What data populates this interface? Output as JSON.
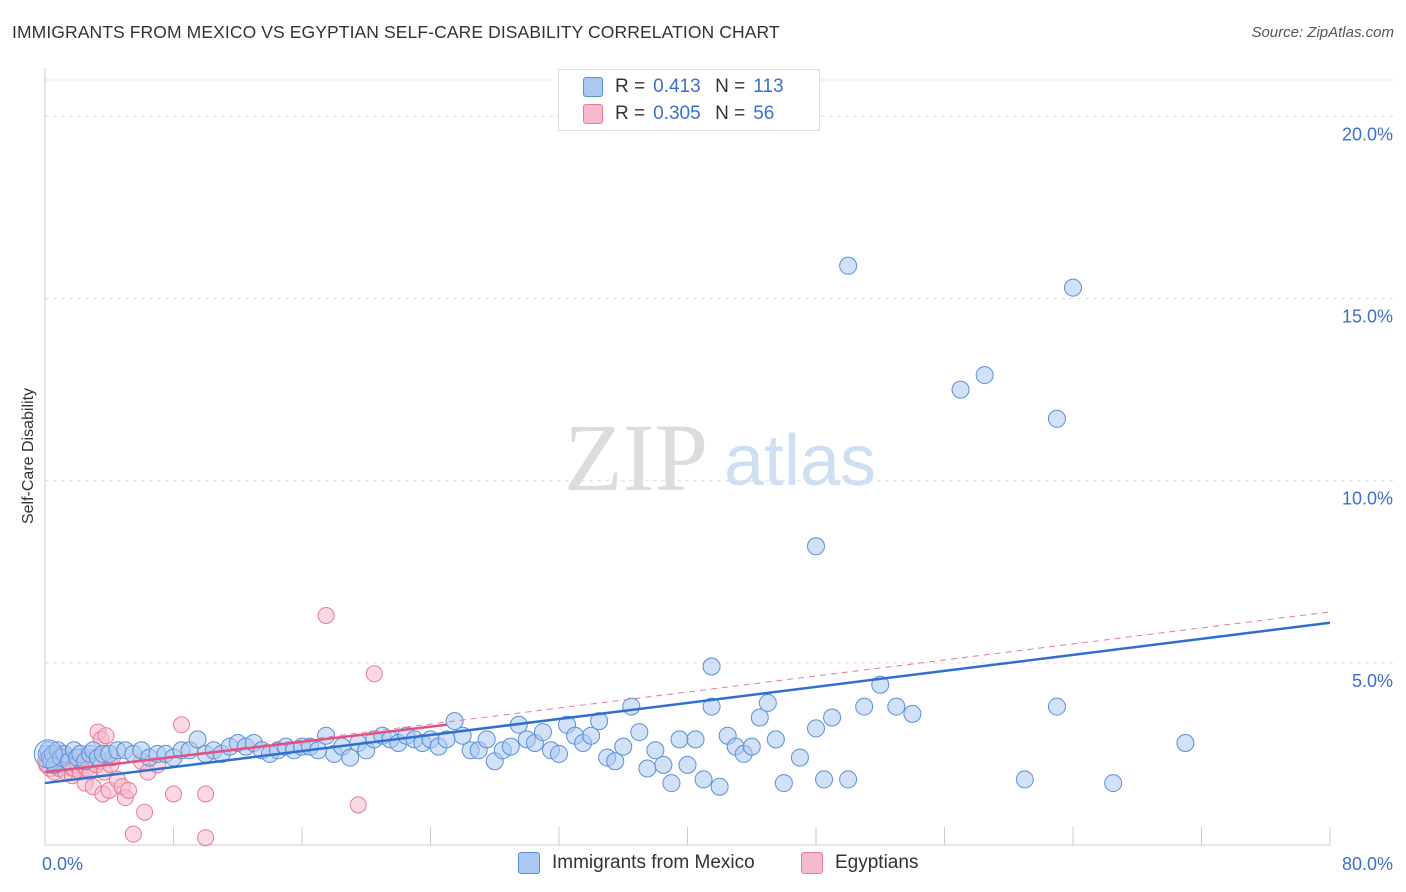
{
  "header": {
    "title": "IMMIGRANTS FROM MEXICO VS EGYPTIAN SELF-CARE DISABILITY CORRELATION CHART",
    "source": "Source: ZipAtlas.com"
  },
  "legend": {
    "r_label": "R =",
    "n_label": "N =",
    "series": [
      {
        "name": "Immigrants from Mexico",
        "r": "0.413",
        "n": "113"
      },
      {
        "name": "Egyptians",
        "r": "0.305",
        "n": "56"
      }
    ]
  },
  "watermark": {
    "zip": "ZIP",
    "atlas": "atlas"
  },
  "colors": {
    "blue_fill": "#a9c8f2",
    "blue_stroke": "#5b8fd9",
    "blue_line": "#2f6fd0",
    "pink_fill": "#f7b9cc",
    "pink_stroke": "#e57a9c",
    "pink_line": "#e0527f",
    "axis_text": "#3b6fd4",
    "grid": "#dddddd"
  },
  "chart_data": {
    "type": "scatter",
    "title": "IMMIGRANTS FROM MEXICO VS EGYPTIAN SELF-CARE DISABILITY CORRELATION CHART",
    "xlabel": "",
    "ylabel": "Self-Care Disability",
    "xlim": [
      0,
      80
    ],
    "ylim": [
      0,
      21
    ],
    "x_tick_labels": [
      {
        "value": 0,
        "label": "0.0%"
      },
      {
        "value": 80,
        "label": "80.0%"
      }
    ],
    "y_tick_labels": [
      {
        "value": 5,
        "label": "5.0%"
      },
      {
        "value": 10,
        "label": "10.0%"
      },
      {
        "value": 15,
        "label": "15.0%"
      },
      {
        "value": 20,
        "label": "20.0%"
      }
    ],
    "series": [
      {
        "name": "Immigrants from Mexico",
        "color": "blue",
        "trend": {
          "x": [
            0,
            80
          ],
          "y": [
            1.7,
            6.1
          ],
          "style": "solid"
        },
        "points": [
          [
            0.1,
            2.5
          ],
          [
            0.2,
            2.6
          ],
          [
            0.3,
            2.4
          ],
          [
            0.4,
            2.3
          ],
          [
            0.5,
            2.5
          ],
          [
            0.6,
            2.2
          ],
          [
            0.8,
            2.6
          ],
          [
            1.0,
            2.4
          ],
          [
            1.2,
            2.5
          ],
          [
            1.5,
            2.3
          ],
          [
            1.8,
            2.6
          ],
          [
            2.0,
            2.4
          ],
          [
            2.2,
            2.5
          ],
          [
            2.5,
            2.3
          ],
          [
            2.8,
            2.5
          ],
          [
            3.0,
            2.6
          ],
          [
            3.3,
            2.4
          ],
          [
            3.6,
            2.5
          ],
          [
            4.0,
            2.5
          ],
          [
            4.5,
            2.6
          ],
          [
            5.0,
            2.6
          ],
          [
            5.5,
            2.5
          ],
          [
            6.0,
            2.6
          ],
          [
            6.5,
            2.4
          ],
          [
            7.0,
            2.5
          ],
          [
            7.5,
            2.5
          ],
          [
            8.0,
            2.4
          ],
          [
            8.5,
            2.6
          ],
          [
            9.0,
            2.6
          ],
          [
            9.5,
            2.9
          ],
          [
            10.0,
            2.5
          ],
          [
            10.5,
            2.6
          ],
          [
            11.0,
            2.5
          ],
          [
            11.5,
            2.7
          ],
          [
            12.0,
            2.8
          ],
          [
            12.5,
            2.7
          ],
          [
            13.0,
            2.8
          ],
          [
            13.5,
            2.6
          ],
          [
            14.0,
            2.5
          ],
          [
            14.5,
            2.6
          ],
          [
            15.0,
            2.7
          ],
          [
            15.5,
            2.6
          ],
          [
            16.0,
            2.7
          ],
          [
            16.5,
            2.7
          ],
          [
            17.0,
            2.6
          ],
          [
            17.5,
            3.0
          ],
          [
            18.0,
            2.5
          ],
          [
            18.5,
            2.7
          ],
          [
            19.0,
            2.4
          ],
          [
            19.5,
            2.8
          ],
          [
            20.0,
            2.6
          ],
          [
            20.5,
            2.9
          ],
          [
            21.0,
            3.0
          ],
          [
            21.5,
            2.9
          ],
          [
            22.0,
            2.8
          ],
          [
            22.5,
            3.0
          ],
          [
            23.0,
            2.9
          ],
          [
            23.5,
            2.8
          ],
          [
            24.0,
            2.9
          ],
          [
            24.5,
            2.7
          ],
          [
            25.0,
            2.9
          ],
          [
            25.5,
            3.4
          ],
          [
            26.0,
            3.0
          ],
          [
            26.5,
            2.6
          ],
          [
            27.0,
            2.6
          ],
          [
            27.5,
            2.9
          ],
          [
            28.0,
            2.3
          ],
          [
            28.5,
            2.6
          ],
          [
            29.0,
            2.7
          ],
          [
            29.5,
            3.3
          ],
          [
            30.0,
            2.9
          ],
          [
            30.5,
            2.8
          ],
          [
            31.0,
            3.1
          ],
          [
            31.5,
            2.6
          ],
          [
            32.0,
            2.5
          ],
          [
            32.5,
            3.3
          ],
          [
            33.0,
            3.0
          ],
          [
            33.5,
            2.8
          ],
          [
            34.0,
            3.0
          ],
          [
            34.5,
            3.4
          ],
          [
            35.0,
            2.4
          ],
          [
            35.5,
            2.3
          ],
          [
            36.0,
            2.7
          ],
          [
            36.5,
            3.8
          ],
          [
            37.0,
            3.1
          ],
          [
            37.5,
            2.1
          ],
          [
            38.0,
            2.6
          ],
          [
            38.5,
            2.2
          ],
          [
            39.0,
            1.7
          ],
          [
            39.5,
            2.9
          ],
          [
            40.0,
            2.2
          ],
          [
            40.5,
            2.9
          ],
          [
            41.0,
            1.8
          ],
          [
            41.5,
            3.8
          ],
          [
            42.0,
            1.6
          ],
          [
            42.5,
            3.0
          ],
          [
            43.0,
            2.7
          ],
          [
            43.5,
            2.5
          ],
          [
            44.0,
            2.7
          ],
          [
            44.5,
            3.5
          ],
          [
            45.0,
            3.9
          ],
          [
            45.5,
            2.9
          ],
          [
            46.0,
            1.7
          ],
          [
            47.0,
            2.4
          ],
          [
            48.0,
            3.2
          ],
          [
            49.0,
            3.5
          ],
          [
            50.0,
            1.8
          ],
          [
            51.0,
            3.8
          ],
          [
            52.0,
            4.4
          ],
          [
            53.0,
            3.8
          ],
          [
            54.0,
            3.6
          ],
          [
            57.0,
            12.5
          ],
          [
            58.5,
            12.9
          ],
          [
            61.0,
            1.8
          ],
          [
            63.0,
            11.7
          ],
          [
            66.5,
            1.7
          ],
          [
            71.0,
            2.8
          ],
          [
            41.5,
            4.9
          ],
          [
            48.0,
            8.2
          ],
          [
            50.0,
            15.9
          ],
          [
            63.0,
            3.8
          ],
          [
            64.0,
            15.3
          ],
          [
            48.5,
            1.8
          ]
        ]
      },
      {
        "name": "Egyptians",
        "color": "pink",
        "trend_solid": {
          "x": [
            0,
            25
          ],
          "y": [
            2.0,
            3.3
          ],
          "style": "solid"
        },
        "trend_dashed": {
          "x": [
            0,
            80
          ],
          "y": [
            2.0,
            6.4
          ],
          "style": "dashed"
        },
        "points": [
          [
            0.1,
            2.2
          ],
          [
            0.2,
            2.4
          ],
          [
            0.3,
            2.1
          ],
          [
            0.4,
            2.5
          ],
          [
            0.5,
            2.3
          ],
          [
            0.6,
            2.0
          ],
          [
            0.7,
            2.2
          ],
          [
            0.8,
            2.4
          ],
          [
            0.9,
            2.1
          ],
          [
            1.0,
            2.3
          ],
          [
            1.1,
            2.2
          ],
          [
            1.2,
            2.5
          ],
          [
            1.3,
            2.0
          ],
          [
            1.4,
            2.3
          ],
          [
            1.5,
            2.2
          ],
          [
            1.6,
            2.4
          ],
          [
            1.7,
            1.9
          ],
          [
            1.8,
            2.1
          ],
          [
            1.9,
            2.3
          ],
          [
            2.0,
            2.2
          ],
          [
            2.1,
            2.4
          ],
          [
            2.2,
            2.0
          ],
          [
            2.3,
            2.3
          ],
          [
            2.4,
            2.2
          ],
          [
            2.5,
            1.7
          ],
          [
            2.6,
            2.1
          ],
          [
            2.7,
            2.3
          ],
          [
            2.8,
            2.0
          ],
          [
            2.9,
            2.4
          ],
          [
            3.0,
            1.6
          ],
          [
            3.2,
            2.2
          ],
          [
            3.3,
            3.1
          ],
          [
            3.4,
            2.3
          ],
          [
            3.5,
            2.9
          ],
          [
            3.6,
            1.4
          ],
          [
            3.7,
            2.0
          ],
          [
            3.8,
            3.0
          ],
          [
            4.0,
            1.5
          ],
          [
            4.1,
            2.2
          ],
          [
            4.2,
            2.4
          ],
          [
            4.5,
            1.8
          ],
          [
            4.8,
            1.6
          ],
          [
            5.0,
            1.3
          ],
          [
            5.2,
            1.5
          ],
          [
            5.5,
            0.3
          ],
          [
            6.0,
            2.3
          ],
          [
            6.2,
            0.9
          ],
          [
            6.4,
            2.0
          ],
          [
            7.0,
            2.2
          ],
          [
            8.5,
            3.3
          ],
          [
            8.0,
            1.4
          ],
          [
            10.0,
            1.4
          ],
          [
            10.0,
            0.2
          ],
          [
            17.5,
            6.3
          ],
          [
            19.5,
            1.1
          ],
          [
            20.5,
            4.7
          ]
        ]
      }
    ]
  }
}
